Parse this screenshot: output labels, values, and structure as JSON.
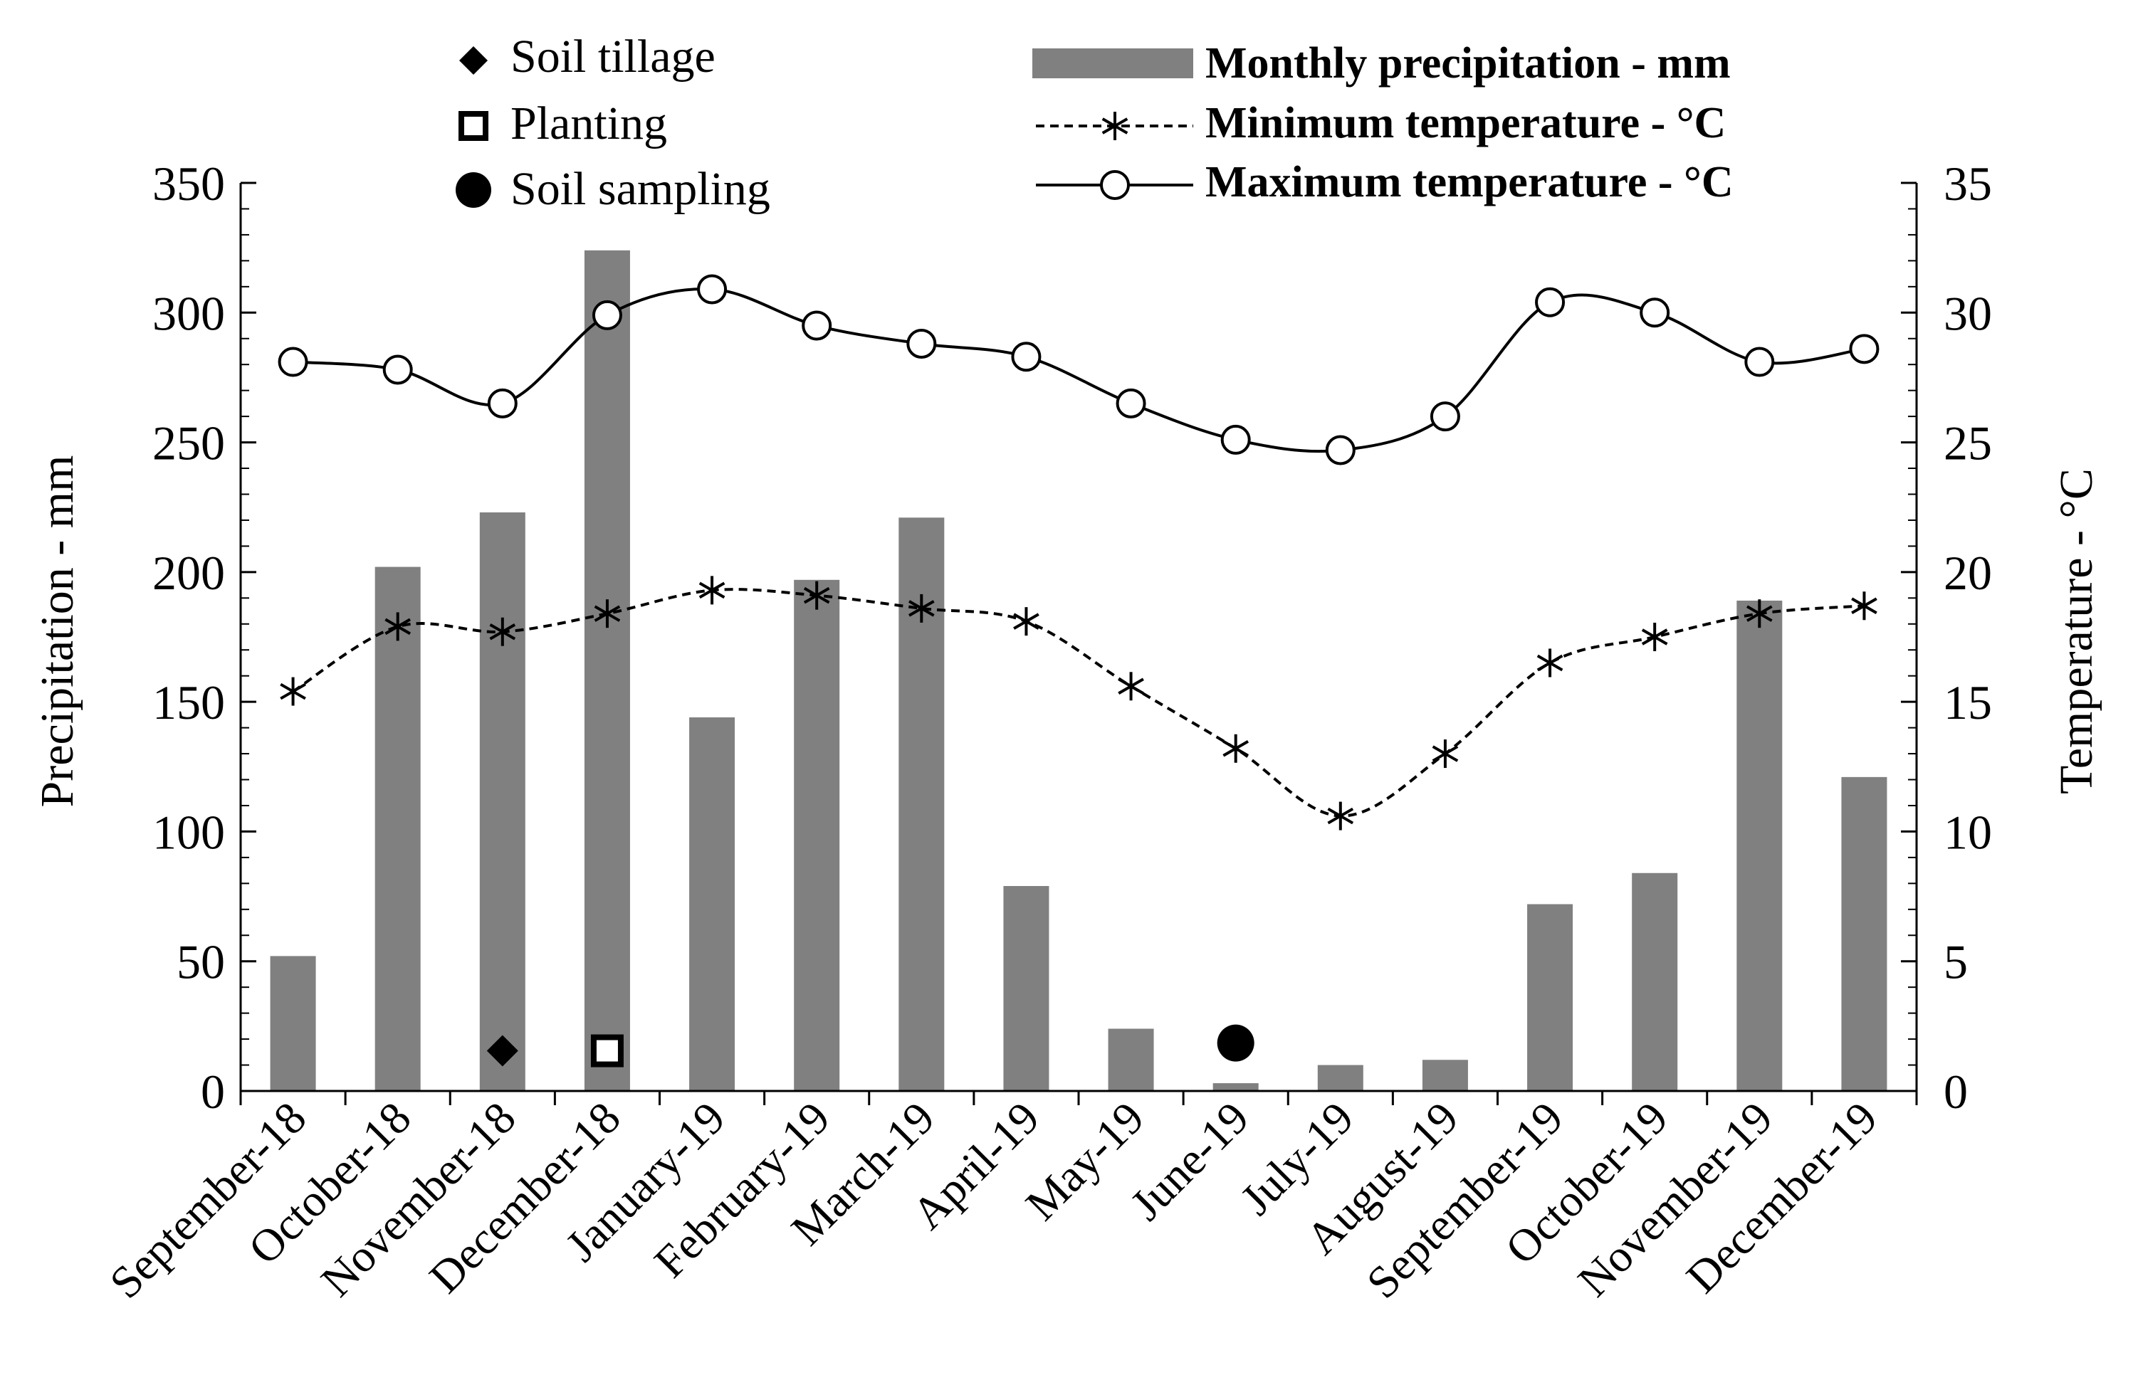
{
  "chart_data": {
    "type": "bar+line",
    "categories": [
      "September-18",
      "October-18",
      "November-18",
      "December-18",
      "January-19",
      "February-19",
      "March-19",
      "April-19",
      "May-19",
      "June-19",
      "July-19",
      "August-19",
      "September-19",
      "October-19",
      "November-19",
      "December-19"
    ],
    "series": [
      {
        "name": "Monthly precipitation - mm",
        "type": "bar",
        "axis": "left",
        "values": [
          52,
          202,
          223,
          324,
          144,
          197,
          221,
          79,
          24,
          3,
          10,
          12,
          72,
          84,
          189,
          121
        ]
      },
      {
        "name": "Minimum temperature - °C",
        "type": "line",
        "style": "dashed",
        "marker": "asterisk",
        "axis": "right",
        "values": [
          15.4,
          17.9,
          17.7,
          18.4,
          19.3,
          19.1,
          18.6,
          18.1,
          15.6,
          13.2,
          10.6,
          13.0,
          16.5,
          17.5,
          18.4,
          18.7
        ]
      },
      {
        "name": "Maximum temperature - °C",
        "type": "line",
        "style": "solid",
        "marker": "open-circle",
        "axis": "right",
        "values": [
          28.1,
          27.8,
          26.5,
          29.9,
          30.9,
          29.5,
          28.8,
          28.3,
          26.5,
          25.1,
          24.7,
          26.0,
          30.4,
          30.0,
          28.1,
          28.6
        ]
      }
    ],
    "events": [
      {
        "name": "Soil  tillage",
        "marker": "filled-diamond",
        "category": "November-18",
        "value": 10
      },
      {
        "name": "Planting",
        "marker": "open-square",
        "category": "December-18",
        "value": 10
      },
      {
        "name": "Soil sampling",
        "marker": "filled-circle",
        "category": "June-19",
        "value": 13
      }
    ],
    "ylabel": "Precipitation  - mm",
    "y2label": "Temperature - °C",
    "ylim": [
      0,
      350
    ],
    "y2lim": [
      0,
      35
    ],
    "yticks": [
      "0",
      "50",
      "100",
      "150",
      "200",
      "250",
      "300",
      "350"
    ],
    "y2ticks": [
      "0",
      "5",
      "10",
      "15",
      "20",
      "25",
      "30",
      "35"
    ],
    "legend_events_position": "top-left",
    "legend_series_position": "top-right",
    "colors": {
      "bar": "#808080",
      "line": "#000000",
      "axis": "#000000"
    }
  }
}
